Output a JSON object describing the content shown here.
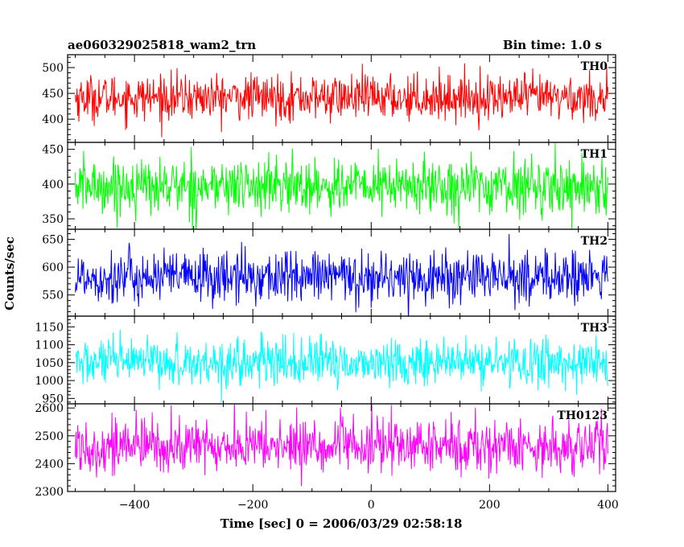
{
  "chart_data": {
    "type": "line",
    "title_left": "ae060329025818_wam2_trn",
    "title_right": "Bin time: 1.0 s",
    "xlabel": "Time [sec] 0 = 2006/03/29 02:58:18",
    "ylabel": "Counts/sec",
    "xlim": [
      -513,
      413
    ],
    "x_ticks": [
      -400,
      -200,
      0,
      200,
      400
    ],
    "x_minor_step": 50,
    "x_range": [
      -500,
      400
    ],
    "panels": [
      {
        "name": "TH0",
        "color": "#ff0000",
        "ylim": [
          355,
          525
        ],
        "y_ticks": [
          400,
          450,
          500
        ],
        "y_minor_step": 10,
        "mean": 442,
        "sigma": 22
      },
      {
        "name": "TH1",
        "color": "#00ff00",
        "ylim": [
          335,
          460
        ],
        "y_ticks": [
          350,
          400,
          450
        ],
        "y_minor_step": 10,
        "mean": 397,
        "sigma": 20
      },
      {
        "name": "TH2",
        "color": "#0000ff",
        "ylim": [
          512,
          668
        ],
        "y_ticks": [
          550,
          600,
          650
        ],
        "y_minor_step": 10,
        "mean": 582,
        "sigma": 24
      },
      {
        "name": "TH3",
        "color": "#00ffff",
        "ylim": [
          935,
          1180
        ],
        "y_ticks": [
          950,
          1000,
          1050,
          1100,
          1150
        ],
        "y_minor_step": 10,
        "mean": 1050,
        "sigma": 33
      },
      {
        "name": "TH0123",
        "color": "#ff00ff",
        "ylim": [
          2300,
          2615
        ],
        "y_ticks": [
          2300,
          2400,
          2500,
          2600
        ],
        "y_minor_step": 20,
        "mean": 2463,
        "sigma": 50
      }
    ]
  }
}
